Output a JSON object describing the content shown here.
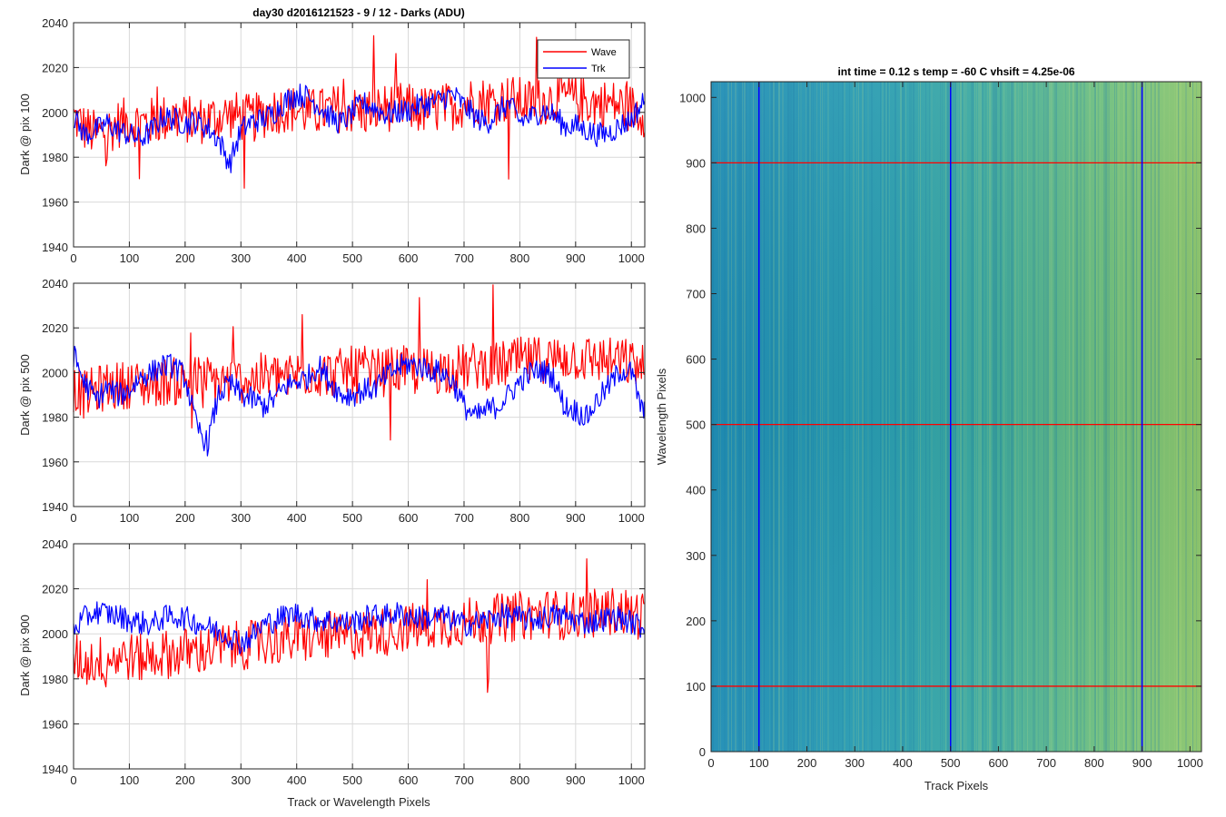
{
  "figure_title": "day30 d2016121523 - 9 / 12 - Darks (ADU)",
  "colors": {
    "wave": "#ff0000",
    "trk": "#0000ff",
    "grid": "#d9d9d9",
    "axis": "#262626",
    "heatmap_low": "#1a8fb8",
    "heatmap_high": "#9fcc5a"
  },
  "chart_data": [
    {
      "type": "line",
      "title": "day30 d2016121523 - 9 / 12 - Darks (ADU)",
      "xlabel": "",
      "ylabel": "Dark @ pix 100",
      "xlim": [
        0,
        1024
      ],
      "ylim": [
        1940,
        2040
      ],
      "xticks": [
        "0",
        "100",
        "200",
        "300",
        "400",
        "500",
        "600",
        "700",
        "800",
        "900",
        "1000"
      ],
      "yticks": [
        "1940",
        "1960",
        "1980",
        "2000",
        "2020",
        "2040"
      ],
      "grid": true,
      "legend": {
        "position": "top-right",
        "entries": [
          "Wave",
          "Trk"
        ]
      },
      "series": [
        {
          "name": "Wave",
          "color": "#ff0000",
          "x": [
            0,
            20,
            40,
            60,
            80,
            100,
            120,
            140,
            160,
            180,
            200,
            220,
            240,
            260,
            280,
            300,
            320,
            340,
            360,
            380,
            400,
            420,
            440,
            460,
            480,
            500,
            520,
            540,
            560,
            580,
            600,
            620,
            640,
            660,
            680,
            700,
            720,
            740,
            760,
            780,
            800,
            820,
            840,
            860,
            880,
            900,
            920,
            940,
            960,
            980,
            1000,
            1020
          ],
          "y": [
            1998,
            1993,
            1990,
            1992,
            1995,
            1996,
            1995,
            1996,
            1997,
            1998,
            1997,
            1996,
            1997,
            1998,
            1999,
            1998,
            1997,
            1999,
            2001,
            2002,
            2001,
            2000,
            2000,
            2001,
            2002,
            2001,
            2000,
            2001,
            2002,
            2003,
            2002,
            2001,
            2001,
            2002,
            2003,
            2004,
            2006,
            2005,
            2005,
            2006,
            2005,
            2004,
            2005,
            2006,
            2007,
            2006,
            2005,
            2004,
            2004,
            2003,
            2002,
            2000
          ]
        },
        {
          "name": "Trk",
          "color": "#0000ff",
          "x": [
            0,
            20,
            40,
            60,
            80,
            100,
            120,
            140,
            160,
            180,
            200,
            220,
            240,
            260,
            280,
            300,
            320,
            340,
            360,
            380,
            400,
            420,
            440,
            460,
            480,
            500,
            520,
            540,
            560,
            580,
            600,
            620,
            640,
            660,
            680,
            700,
            720,
            740,
            760,
            780,
            800,
            820,
            840,
            860,
            880,
            900,
            920,
            940,
            960,
            980,
            1000,
            1020
          ],
          "y": [
            1998,
            1990,
            1992,
            1995,
            1992,
            1990,
            1988,
            1992,
            1998,
            1997,
            1995,
            1996,
            1993,
            1988,
            1977,
            1992,
            1996,
            1997,
            2000,
            2005,
            2008,
            2007,
            2003,
            1998,
            1995,
            2000,
            2004,
            2002,
            1999,
            2000,
            2001,
            2003,
            2004,
            2006,
            2008,
            2003,
            1998,
            1995,
            2000,
            2004,
            1996,
            1998,
            2001,
            1999,
            1994,
            1994,
            1992,
            1990,
            1991,
            1994,
            1997,
            2004
          ]
        }
      ]
    },
    {
      "type": "line",
      "title": "",
      "xlabel": "",
      "ylabel": "Dark @ pix 500",
      "xlim": [
        0,
        1024
      ],
      "ylim": [
        1940,
        2040
      ],
      "xticks": [
        "0",
        "100",
        "200",
        "300",
        "400",
        "500",
        "600",
        "700",
        "800",
        "900",
        "1000"
      ],
      "yticks": [
        "1940",
        "1960",
        "1980",
        "2000",
        "2020",
        "2040"
      ],
      "grid": true,
      "series": [
        {
          "name": "Wave",
          "color": "#ff0000",
          "x": [
            0,
            20,
            40,
            60,
            80,
            100,
            120,
            140,
            160,
            180,
            200,
            220,
            240,
            260,
            280,
            300,
            320,
            340,
            360,
            380,
            400,
            420,
            440,
            460,
            480,
            500,
            520,
            540,
            560,
            580,
            600,
            620,
            640,
            660,
            680,
            700,
            720,
            740,
            760,
            780,
            800,
            820,
            840,
            860,
            880,
            900,
            920,
            940,
            960,
            980,
            1000,
            1020
          ],
          "y": [
            1993,
            1990,
            1992,
            1994,
            1994,
            1995,
            1994,
            1995,
            1996,
            1996,
            1996,
            1997,
            1997,
            1996,
            1996,
            1997,
            1997,
            1998,
            1998,
            1999,
            1999,
            2000,
            2000,
            1999,
            2000,
            2001,
            2001,
            2000,
            2000,
            2001,
            2001,
            2000,
            2001,
            2001,
            2002,
            2002,
            2003,
            2003,
            2003,
            2004,
            2005,
            2005,
            2006,
            2006,
            2007,
            2007,
            2006,
            2006,
            2005,
            2005,
            2004,
            2002
          ]
        },
        {
          "name": "Trk",
          "color": "#0000ff",
          "x": [
            0,
            20,
            40,
            60,
            80,
            100,
            120,
            140,
            160,
            180,
            200,
            220,
            240,
            260,
            280,
            300,
            320,
            340,
            360,
            380,
            400,
            420,
            440,
            460,
            480,
            500,
            520,
            540,
            560,
            580,
            600,
            620,
            640,
            660,
            680,
            700,
            720,
            740,
            760,
            780,
            800,
            820,
            840,
            860,
            880,
            900,
            920,
            940,
            960,
            980,
            1000,
            1020
          ],
          "y": [
            2008,
            1995,
            1988,
            1993,
            1990,
            1992,
            1998,
            2000,
            2003,
            2003,
            1998,
            1976,
            1968,
            1990,
            1995,
            1990,
            1988,
            1985,
            1988,
            1994,
            1996,
            1998,
            2003,
            1996,
            1990,
            1990,
            1992,
            1993,
            1998,
            2002,
            2004,
            2003,
            2001,
            2000,
            1996,
            1985,
            1980,
            1983,
            1985,
            1990,
            1996,
            2000,
            2001,
            1998,
            1985,
            1983,
            1980,
            1988,
            1994,
            2001,
            2000,
            1982
          ]
        }
      ]
    },
    {
      "type": "line",
      "title": "",
      "xlabel": "Track or Wavelength Pixels",
      "ylabel": "Dark @ pix 900",
      "xlim": [
        0,
        1024
      ],
      "ylim": [
        1940,
        2040
      ],
      "xticks": [
        "0",
        "100",
        "200",
        "300",
        "400",
        "500",
        "600",
        "700",
        "800",
        "900",
        "1000"
      ],
      "yticks": [
        "1940",
        "1960",
        "1980",
        "2000",
        "2020",
        "2040"
      ],
      "grid": true,
      "series": [
        {
          "name": "Wave",
          "color": "#ff0000",
          "x": [
            0,
            20,
            40,
            60,
            80,
            100,
            120,
            140,
            160,
            180,
            200,
            220,
            240,
            260,
            280,
            300,
            320,
            340,
            360,
            380,
            400,
            420,
            440,
            460,
            480,
            500,
            520,
            540,
            560,
            580,
            600,
            620,
            640,
            660,
            680,
            700,
            720,
            740,
            760,
            780,
            800,
            820,
            840,
            860,
            880,
            900,
            920,
            940,
            960,
            980,
            1000,
            1020
          ],
          "y": [
            1990,
            1987,
            1988,
            1989,
            1990,
            1990,
            1989,
            1990,
            1991,
            1991,
            1992,
            1992,
            1993,
            1994,
            1994,
            1995,
            1995,
            1996,
            1997,
            1997,
            1998,
            1998,
            1999,
            1999,
            1998,
            1999,
            2000,
            2001,
            2001,
            2002,
            2003,
            2003,
            2004,
            2004,
            2005,
            2005,
            2006,
            2006,
            2007,
            2007,
            2008,
            2008,
            2009,
            2009,
            2008,
            2008,
            2009,
            2009,
            2010,
            2010,
            2009,
            2008
          ]
        },
        {
          "name": "Trk",
          "color": "#0000ff",
          "x": [
            0,
            20,
            40,
            60,
            80,
            100,
            120,
            140,
            160,
            180,
            200,
            220,
            240,
            260,
            280,
            300,
            320,
            340,
            360,
            380,
            400,
            420,
            440,
            460,
            480,
            500,
            520,
            540,
            560,
            580,
            600,
            620,
            640,
            660,
            680,
            700,
            720,
            740,
            760,
            780,
            800,
            820,
            840,
            860,
            880,
            900,
            920,
            940,
            960,
            980,
            1000,
            1020
          ],
          "y": [
            2002,
            2007,
            2010,
            2009,
            2008,
            2006,
            2005,
            2004,
            2007,
            2008,
            2007,
            2005,
            2003,
            2001,
            1999,
            1996,
            1999,
            2004,
            2006,
            2008,
            2009,
            2007,
            2006,
            2006,
            2005,
            2005,
            2007,
            2008,
            2008,
            2009,
            2008,
            2007,
            2007,
            2008,
            2006,
            2004,
            2005,
            2006,
            2008,
            2008,
            2007,
            2006,
            2007,
            2008,
            2008,
            2006,
            2005,
            2006,
            2007,
            2007,
            2005,
            2003
          ]
        }
      ]
    },
    {
      "type": "heatmap",
      "title": "int time = 0.12 s    temp = -60 C    vhsift = 4.25e-06",
      "xlabel": "Track Pixels",
      "ylabel": "Wavelength Pixels",
      "xlim": [
        0,
        1024
      ],
      "ylim": [
        0,
        1024
      ],
      "xticks": [
        "0",
        "100",
        "200",
        "300",
        "400",
        "500",
        "600",
        "700",
        "800",
        "900",
        "1000"
      ],
      "yticks": [
        "0",
        "100",
        "200",
        "300",
        "400",
        "500",
        "600",
        "700",
        "800",
        "900",
        "1000"
      ],
      "grid": false,
      "vertical_markers": {
        "color": "#0000ff",
        "x": [
          100,
          500,
          900
        ]
      },
      "horizontal_markers": {
        "color": "#ff0000",
        "y": [
          100,
          500,
          900
        ]
      }
    }
  ]
}
